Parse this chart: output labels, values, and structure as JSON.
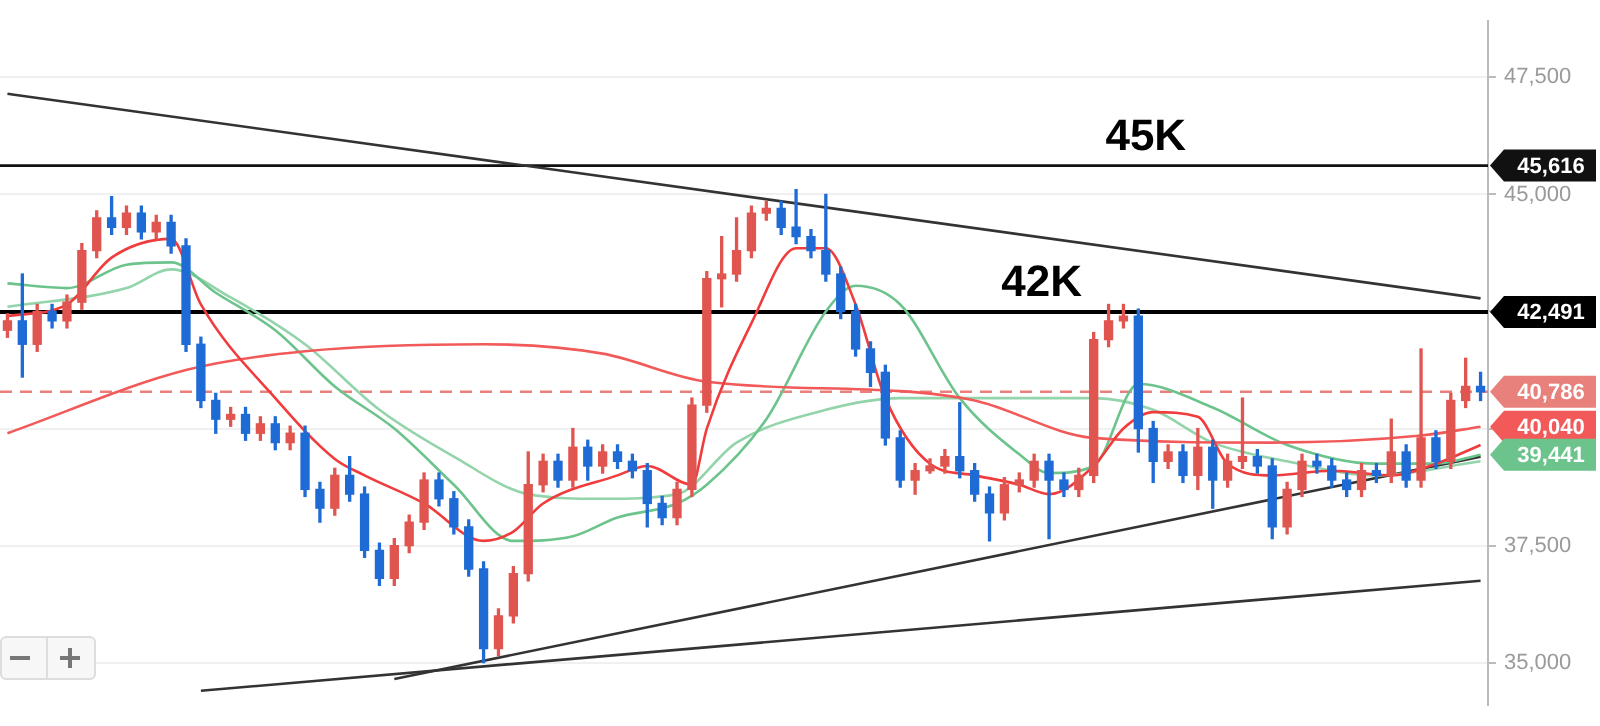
{
  "chart_data": {
    "type": "candlestick",
    "categories": [
      null,
      null,
      null,
      null,
      null,
      null,
      null,
      null,
      null,
      null,
      null,
      null,
      null,
      null,
      null,
      null,
      null,
      null,
      null,
      null,
      null,
      null,
      null,
      null,
      null,
      null,
      null,
      null,
      null,
      null,
      null,
      null,
      null,
      null,
      null,
      null,
      null,
      null,
      null,
      null,
      null,
      null,
      null,
      null,
      null,
      null,
      null,
      null,
      null,
      null,
      null,
      null,
      null,
      null,
      null,
      null,
      null,
      null,
      null,
      null,
      null,
      null,
      null,
      null,
      null,
      null,
      null,
      null,
      null,
      null,
      null,
      null,
      null,
      null,
      null,
      null,
      null,
      null,
      null,
      null,
      null,
      null,
      null,
      null,
      null,
      null,
      null,
      null,
      null,
      null,
      null,
      null,
      null,
      null,
      null,
      null,
      null,
      null,
      null,
      null
    ],
    "ohlc": [
      [
        42100,
        42450,
        41950,
        42300
      ],
      [
        42300,
        43300,
        41100,
        41800
      ],
      [
        41800,
        42650,
        41650,
        42500
      ],
      [
        42500,
        42650,
        42150,
        42300
      ],
      [
        42300,
        42850,
        42150,
        42700
      ],
      [
        42700,
        43950,
        42550,
        43800
      ],
      [
        43800,
        44650,
        43650,
        44500
      ],
      [
        44500,
        44950,
        44150,
        44300
      ],
      [
        44300,
        44750,
        44150,
        44600
      ],
      [
        44600,
        44750,
        44050,
        44200
      ],
      [
        44200,
        44550,
        44050,
        44400
      ],
      [
        44400,
        44550,
        43750,
        43900
      ],
      [
        43900,
        44050,
        41650,
        41800
      ],
      [
        41800,
        41950,
        40450,
        40600
      ],
      [
        40600,
        40750,
        39900,
        40200
      ],
      [
        40200,
        40450,
        40050,
        40300
      ],
      [
        40300,
        40450,
        39750,
        39900
      ],
      [
        39900,
        40250,
        39750,
        40100
      ],
      [
        40100,
        40250,
        39550,
        39700
      ],
      [
        39700,
        40050,
        39550,
        39900
      ],
      [
        39900,
        40050,
        38550,
        38700
      ],
      [
        38700,
        38850,
        38000,
        38300
      ],
      [
        38300,
        39150,
        38150,
        39000
      ],
      [
        39000,
        39400,
        38450,
        38600
      ],
      [
        38600,
        38750,
        37250,
        37400
      ],
      [
        37400,
        37550,
        36650,
        36800
      ],
      [
        36800,
        37650,
        36650,
        37500
      ],
      [
        37500,
        38150,
        37350,
        38000
      ],
      [
        38000,
        39050,
        37850,
        38900
      ],
      [
        38900,
        39050,
        38350,
        38500
      ],
      [
        38500,
        38650,
        37750,
        37900
      ],
      [
        37900,
        38050,
        36850,
        37000
      ],
      [
        37000,
        37150,
        35000,
        35300
      ],
      [
        35300,
        36150,
        35150,
        36000
      ],
      [
        36000,
        37050,
        35850,
        36900
      ],
      [
        36900,
        39500,
        36750,
        38800
      ],
      [
        38800,
        39450,
        38650,
        39300
      ],
      [
        39300,
        39450,
        38750,
        38900
      ],
      [
        38900,
        40000,
        38750,
        39600
      ],
      [
        39600,
        39750,
        38900,
        39200
      ],
      [
        39200,
        39650,
        39050,
        39500
      ],
      [
        39500,
        39650,
        39150,
        39300
      ],
      [
        39300,
        39450,
        38950,
        39100
      ],
      [
        39100,
        39250,
        37900,
        38400
      ],
      [
        38400,
        38550,
        37950,
        38100
      ],
      [
        38100,
        38850,
        37950,
        38700
      ],
      [
        38700,
        40650,
        38550,
        40500
      ],
      [
        40500,
        43350,
        40350,
        43200
      ],
      [
        43200,
        44100,
        42600,
        43300
      ],
      [
        43300,
        44500,
        43150,
        43800
      ],
      [
        43800,
        44750,
        43650,
        44600
      ],
      [
        44600,
        44850,
        44450,
        44700
      ],
      [
        44700,
        44850,
        44150,
        44300
      ],
      [
        44300,
        45100,
        43950,
        44100
      ],
      [
        44100,
        44250,
        43650,
        43800
      ],
      [
        43800,
        45000,
        43150,
        43300
      ],
      [
        43300,
        43450,
        42350,
        42500
      ],
      [
        42500,
        42650,
        41550,
        41700
      ],
      [
        41700,
        41850,
        40900,
        41200
      ],
      [
        41200,
        41350,
        39650,
        39800
      ],
      [
        39800,
        39950,
        38750,
        38900
      ],
      [
        38900,
        39250,
        38600,
        39100
      ],
      [
        39100,
        39350,
        39050,
        39200
      ],
      [
        39200,
        39550,
        39050,
        39400
      ],
      [
        39400,
        40550,
        38950,
        39100
      ],
      [
        39100,
        39250,
        38450,
        38600
      ],
      [
        38600,
        38750,
        37600,
        38200
      ],
      [
        38200,
        38950,
        38050,
        38800
      ],
      [
        38800,
        39050,
        38650,
        38900
      ],
      [
        38900,
        39450,
        38750,
        39300
      ],
      [
        39300,
        39450,
        37650,
        38900
      ],
      [
        38900,
        39050,
        38550,
        38700
      ],
      [
        38700,
        39150,
        38550,
        39000
      ],
      [
        39000,
        42050,
        38850,
        41900
      ],
      [
        41900,
        42650,
        41750,
        42300
      ],
      [
        42300,
        42650,
        42150,
        42400
      ],
      [
        42400,
        42550,
        39500,
        40000
      ],
      [
        40000,
        40150,
        38850,
        39300
      ],
      [
        39300,
        39650,
        39150,
        39500
      ],
      [
        39500,
        39650,
        38850,
        39000
      ],
      [
        39000,
        40000,
        38700,
        39600
      ],
      [
        39600,
        39750,
        38300,
        38900
      ],
      [
        38900,
        39450,
        38750,
        39300
      ],
      [
        39300,
        40650,
        39150,
        39400
      ],
      [
        39400,
        39550,
        39050,
        39200
      ],
      [
        39200,
        39350,
        37650,
        37900
      ],
      [
        37900,
        38850,
        37750,
        38700
      ],
      [
        38700,
        39450,
        38550,
        39300
      ],
      [
        39300,
        39450,
        39050,
        39200
      ],
      [
        39200,
        39350,
        38750,
        38900
      ],
      [
        38900,
        39050,
        38550,
        38700
      ],
      [
        38700,
        39250,
        38550,
        39100
      ],
      [
        39100,
        39250,
        38850,
        39000
      ],
      [
        39000,
        40200,
        38850,
        39500
      ],
      [
        39500,
        39650,
        38750,
        38900
      ],
      [
        38900,
        41700,
        38750,
        39800
      ],
      [
        39800,
        39950,
        39150,
        39300
      ],
      [
        39300,
        40750,
        39150,
        40600
      ],
      [
        40600,
        41500,
        40450,
        40900
      ],
      [
        40900,
        41200,
        40600,
        40786
      ]
    ],
    "colors": [
      "#e0554f",
      "#1f6bd6",
      "#e0554f",
      "#1f6bd6",
      "#e0554f",
      "#e0554f",
      "#e0554f",
      "#1f6bd6",
      "#e0554f",
      "#1f6bd6",
      "#e0554f",
      "#1f6bd6",
      "#1f6bd6",
      "#1f6bd6",
      "#1f6bd6",
      "#e0554f",
      "#1f6bd6",
      "#e0554f",
      "#1f6bd6",
      "#e0554f",
      "#1f6bd6",
      "#1f6bd6",
      "#e0554f",
      "#1f6bd6",
      "#1f6bd6",
      "#1f6bd6",
      "#e0554f",
      "#e0554f",
      "#e0554f",
      "#1f6bd6",
      "#1f6bd6",
      "#1f6bd6",
      "#1f6bd6",
      "#e0554f",
      "#e0554f",
      "#e0554f",
      "#e0554f",
      "#1f6bd6",
      "#e0554f",
      "#1f6bd6",
      "#e0554f",
      "#1f6bd6",
      "#1f6bd6",
      "#1f6bd6",
      "#1f6bd6",
      "#e0554f",
      "#e0554f",
      "#e0554f",
      "#e0554f",
      "#e0554f",
      "#e0554f",
      "#e0554f",
      "#1f6bd6",
      "#1f6bd6",
      "#1f6bd6",
      "#1f6bd6",
      "#1f6bd6",
      "#1f6bd6",
      "#1f6bd6",
      "#1f6bd6",
      "#1f6bd6",
      "#e0554f",
      "#e0554f",
      "#e0554f",
      "#1f6bd6",
      "#1f6bd6",
      "#1f6bd6",
      "#e0554f",
      "#e0554f",
      "#e0554f",
      "#1f6bd6",
      "#1f6bd6",
      "#e0554f",
      "#e0554f",
      "#e0554f",
      "#e0554f",
      "#1f6bd6",
      "#1f6bd6",
      "#e0554f",
      "#1f6bd6",
      "#e0554f",
      "#1f6bd6",
      "#e0554f",
      "#e0554f",
      "#1f6bd6",
      "#1f6bd6",
      "#e0554f",
      "#e0554f",
      "#1f6bd6",
      "#1f6bd6",
      "#1f6bd6",
      "#e0554f",
      "#1f6bd6",
      "#e0554f",
      "#1f6bd6",
      "#e0554f",
      "#1f6bd6",
      "#e0554f",
      "#e0554f",
      "#1f6bd6"
    ],
    "series": [
      {
        "type": "line",
        "color": "#f03c3c",
        "values": [
          42400,
          null,
          null,
          null,
          42650,
          null,
          null,
          43650,
          null,
          null,
          null,
          44050,
          null,
          42650,
          null,
          null,
          null,
          null,
          40650,
          null,
          null,
          null,
          39350,
          null,
          39000,
          null,
          null,
          null,
          38400,
          null,
          null,
          null,
          37600,
          null,
          37800,
          null,
          38400,
          null,
          null,
          null,
          null,
          39000,
          null,
          39200,
          null,
          null,
          38800,
          40000,
          null,
          null,
          42250,
          null,
          null,
          43850,
          null,
          43850,
          null,
          42650,
          null,
          40650,
          null,
          null,
          39250,
          null,
          null,
          39000,
          null,
          null,
          38800,
          null,
          38600,
          null,
          null,
          39200,
          null,
          40000,
          null,
          40350,
          null,
          null,
          40250,
          null,
          39250,
          null,
          null,
          39000,
          null,
          null,
          null,
          39100,
          null,
          null,
          null,
          39000,
          null,
          null,
          39250,
          null,
          null,
          39650
        ]
      },
      {
        "type": "line",
        "color": "#f25a5a",
        "values": [
          39900,
          null,
          null,
          null,
          null,
          null,
          null,
          null,
          null,
          null,
          null,
          null,
          41250,
          null,
          null,
          null,
          null,
          null,
          null,
          null,
          41650,
          null,
          null,
          null,
          null,
          null,
          null,
          null,
          null,
          null,
          null,
          null,
          41800,
          null,
          null,
          null,
          null,
          null,
          null,
          null,
          41600,
          null,
          null,
          null,
          null,
          null,
          null,
          41000,
          null,
          null,
          null,
          null,
          null,
          null,
          null,
          null,
          null,
          null,
          null,
          null,
          40800,
          null,
          null,
          null,
          null,
          40600,
          null,
          null,
          null,
          null,
          null,
          null,
          null,
          39800,
          null,
          null,
          null,
          null,
          null,
          null,
          null,
          null,
          null,
          null,
          null,
          39700,
          null,
          null,
          null,
          null,
          null,
          null,
          null,
          null,
          null,
          39850,
          null,
          null,
          null,
          40040
        ],
        "value_labels": [
          null,
          null,
          null,
          null,
          null,
          null,
          null,
          null,
          null,
          null,
          null,
          null,
          null,
          null,
          null,
          null,
          null,
          null,
          null,
          null,
          null,
          null,
          null,
          null,
          null,
          null,
          null,
          null,
          null,
          null,
          null,
          null,
          null,
          null,
          null,
          null,
          null,
          null,
          null,
          null,
          null,
          null,
          null,
          null,
          null,
          null,
          null,
          null,
          null,
          null,
          null,
          null,
          null,
          null,
          null,
          null,
          null,
          null,
          null,
          null,
          null,
          null,
          null,
          null,
          null,
          null,
          null,
          null,
          null,
          null,
          null,
          null,
          null,
          null,
          null,
          null,
          null,
          null,
          null,
          null,
          null,
          null,
          null,
          null,
          null,
          null,
          null,
          null,
          null,
          null,
          null,
          null,
          null,
          null,
          null,
          null,
          null,
          null,
          null,
          "40,040"
        ]
      },
      {
        "type": "line",
        "color": "#6cc48c",
        "values": [
          43100,
          null,
          null,
          null,
          43000,
          null,
          null,
          null,
          43500,
          null,
          null,
          43550,
          null,
          null,
          42900,
          null,
          null,
          null,
          42100,
          null,
          null,
          null,
          40900,
          null,
          null,
          null,
          40000,
          null,
          null,
          null,
          38800,
          null,
          null,
          null,
          37600,
          null,
          null,
          null,
          37700,
          null,
          null,
          38100,
          null,
          null,
          null,
          38400,
          null,
          38800,
          null,
          null,
          null,
          40200,
          null,
          null,
          null,
          42500,
          null,
          43050,
          null,
          null,
          42650,
          null,
          null,
          null,
          40650,
          null,
          null,
          null,
          39450,
          null,
          39050,
          null,
          null,
          39200,
          null,
          null,
          40950,
          null,
          null,
          null,
          null,
          40450,
          null,
          null,
          null,
          null,
          39650,
          null,
          null,
          null,
          null,
          null,
          39250,
          null,
          null,
          null,
          39250,
          null,
          null,
          39441
        ],
        "value_labels": [
          null,
          null,
          null,
          null,
          null,
          null,
          null,
          null,
          null,
          null,
          null,
          null,
          null,
          null,
          null,
          null,
          null,
          null,
          null,
          null,
          null,
          null,
          null,
          null,
          null,
          null,
          null,
          null,
          null,
          null,
          null,
          null,
          null,
          null,
          null,
          null,
          null,
          null,
          null,
          null,
          null,
          null,
          null,
          null,
          null,
          null,
          null,
          null,
          null,
          null,
          null,
          null,
          null,
          null,
          null,
          null,
          null,
          null,
          null,
          null,
          null,
          null,
          null,
          null,
          null,
          null,
          null,
          null,
          null,
          null,
          null,
          null,
          null,
          null,
          null,
          null,
          null,
          null,
          null,
          null,
          null,
          null,
          null,
          null,
          null,
          null,
          null,
          null,
          null,
          null,
          null,
          null,
          null,
          null,
          null,
          null,
          null,
          null,
          null,
          "39,441"
        ]
      },
      {
        "type": "line",
        "color": "#93d4aa",
        "values": [
          42600,
          null,
          null,
          null,
          null,
          null,
          null,
          null,
          43000,
          null,
          null,
          43400,
          null,
          null,
          null,
          42800,
          null,
          null,
          null,
          null,
          41800,
          null,
          null,
          null,
          null,
          40400,
          null,
          null,
          null,
          null,
          39400,
          null,
          null,
          null,
          null,
          38600,
          null,
          null,
          null,
          null,
          38500,
          null,
          null,
          null,
          null,
          38600,
          null,
          null,
          null,
          39700,
          null,
          null,
          null,
          null,
          null,
          40400,
          null,
          null,
          null,
          null,
          40650,
          null,
          null,
          null,
          null,
          null,
          40650,
          null,
          null,
          null,
          null,
          null,
          null,
          40650,
          null,
          null,
          null,
          40400,
          null,
          null,
          null,
          39700,
          null,
          null,
          null,
          null,
          39300,
          null,
          null,
          null,
          null,
          null,
          39000,
          null,
          null,
          null,
          null,
          null,
          null,
          39300
        ]
      },
      {
        "type": "line",
        "color": "#333333",
        "values": [
          47150,
          null,
          null,
          null,
          null,
          null,
          null,
          null,
          null,
          null,
          null,
          null,
          null,
          null,
          null,
          null,
          null,
          null,
          null,
          null,
          null,
          null,
          null,
          null,
          null,
          null,
          null,
          null,
          null,
          null,
          null,
          null,
          null,
          null,
          null,
          null,
          null,
          null,
          null,
          null,
          null,
          null,
          null,
          null,
          null,
          null,
          null,
          null,
          null,
          null,
          null,
          null,
          null,
          null,
          null,
          null,
          null,
          null,
          null,
          null,
          null,
          null,
          null,
          null,
          null,
          null,
          null,
          null,
          null,
          null,
          null,
          null,
          null,
          null,
          null,
          null,
          null,
          null,
          null,
          null,
          null,
          null,
          null,
          null,
          null,
          null,
          null,
          null,
          null,
          null,
          null,
          null,
          null,
          null,
          null,
          null,
          null,
          null,
          null,
          42780
        ]
      },
      {
        "type": "line",
        "color": "#333333",
        "values": [
          null,
          null,
          null,
          null,
          null,
          null,
          null,
          null,
          null,
          null,
          null,
          null,
          null,
          null,
          null,
          null,
          null,
          null,
          null,
          null,
          null,
          null,
          null,
          null,
          null,
          null,
          34650,
          null,
          null,
          null,
          null,
          null,
          null,
          null,
          null,
          null,
          null,
          null,
          null,
          null,
          null,
          null,
          null,
          null,
          null,
          null,
          null,
          null,
          null,
          null,
          null,
          null,
          null,
          null,
          null,
          null,
          null,
          null,
          null,
          null,
          null,
          null,
          null,
          null,
          null,
          null,
          null,
          null,
          null,
          null,
          null,
          null,
          null,
          null,
          null,
          null,
          null,
          null,
          null,
          null,
          null,
          null,
          null,
          null,
          null,
          null,
          null,
          null,
          null,
          null,
          null,
          null,
          null,
          null,
          null,
          null,
          null,
          null,
          null,
          39400
        ]
      },
      {
        "type": "line",
        "color": "#333333",
        "values": [
          null,
          null,
          null,
          null,
          null,
          null,
          null,
          null,
          null,
          null,
          null,
          null,
          null,
          34400,
          null,
          null,
          null,
          null,
          null,
          null,
          null,
          null,
          null,
          null,
          null,
          null,
          null,
          null,
          null,
          null,
          null,
          null,
          null,
          null,
          null,
          null,
          null,
          null,
          null,
          null,
          null,
          null,
          null,
          null,
          null,
          null,
          null,
          null,
          null,
          null,
          null,
          null,
          null,
          null,
          null,
          null,
          null,
          null,
          null,
          null,
          null,
          null,
          null,
          null,
          null,
          null,
          null,
          null,
          null,
          null,
          null,
          null,
          null,
          null,
          null,
          null,
          null,
          null,
          null,
          null,
          null,
          null,
          null,
          null,
          null,
          null,
          null,
          null,
          null,
          null,
          null,
          null,
          null,
          null,
          null,
          null,
          null,
          null,
          null,
          36750
        ]
      }
    ],
    "ylim": [
      34100,
      48700
    ],
    "yticks": [
      {
        "value": 35000,
        "label": "35,000"
      },
      {
        "value": 37500,
        "label": "37,500"
      },
      {
        "value": 40000,
        "label": null
      },
      {
        "value": 42500,
        "label": null
      },
      {
        "value": 45000,
        "label": "45,000"
      },
      {
        "value": 47500,
        "label": "47,500"
      }
    ],
    "grid": "y",
    "tick_labels": "y",
    "marker": "none",
    "ref_lines": [
      {
        "axis": "y",
        "value": 45616,
        "label": "45,616",
        "color": "#111111",
        "line_style": "solid"
      },
      {
        "axis": "y",
        "value": 42491,
        "label": "42,491",
        "color": "#000000",
        "line_style": "solid"
      },
      {
        "axis": "y",
        "value": 40786,
        "label": "40,786",
        "color": "#e8807c",
        "line_style": "dashed"
      }
    ],
    "annotations": [
      "45K",
      "42K"
    ]
  }
}
